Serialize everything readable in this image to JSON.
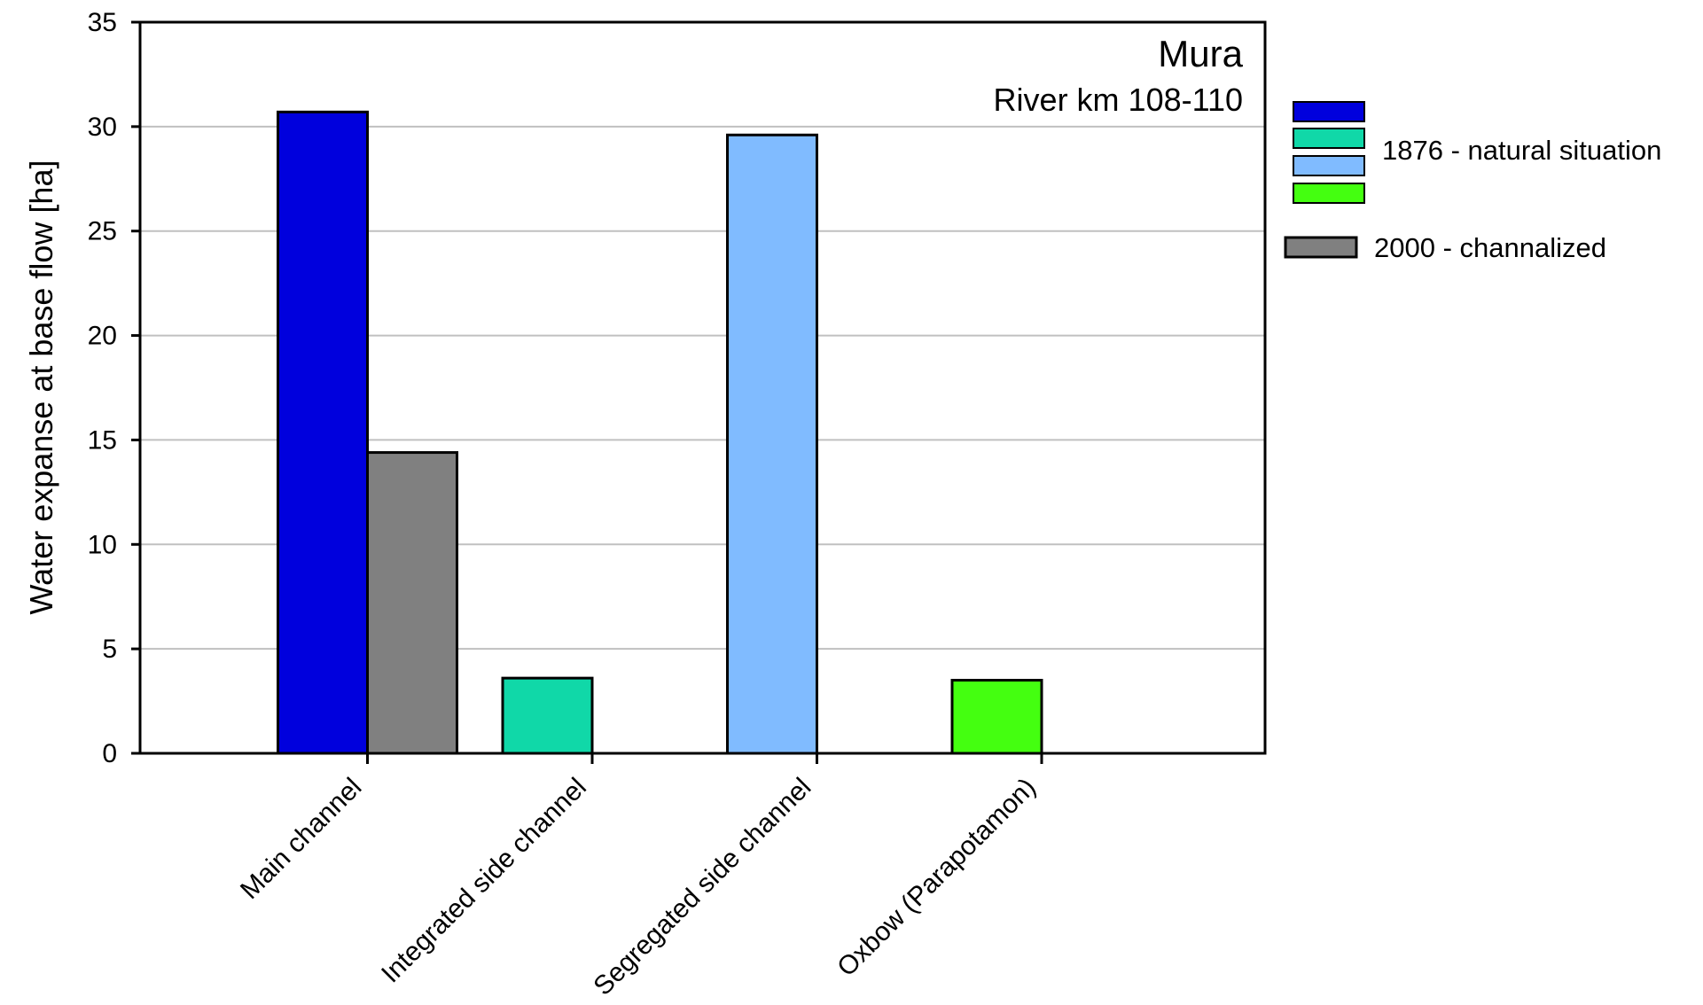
{
  "chart_data": {
    "type": "bar",
    "title": "Mura",
    "subtitle": "River km 108-110",
    "ylabel": "Water expanse at base flow [ha]",
    "xlabel": "",
    "ylim": [
      0,
      35
    ],
    "yticks": [
      0,
      5,
      10,
      15,
      20,
      25,
      30,
      35
    ],
    "grid": true,
    "legend_position": "right",
    "categories": [
      "Main channel",
      "Integrated side channel",
      "Segregated side channel",
      "Oxbow (Parapotamon)"
    ],
    "series": [
      {
        "name": "1876 - natural situation",
        "values": [
          30.7,
          3.6,
          29.6,
          3.5
        ],
        "colors": [
          "#0000dd",
          "#10d8a8",
          "#80bbff",
          "#44ff10"
        ]
      },
      {
        "name": "2000 - channalized",
        "values": [
          14.4,
          0,
          0,
          0
        ],
        "colors": [
          "#808080",
          "#808080",
          "#808080",
          "#808080"
        ]
      }
    ]
  }
}
